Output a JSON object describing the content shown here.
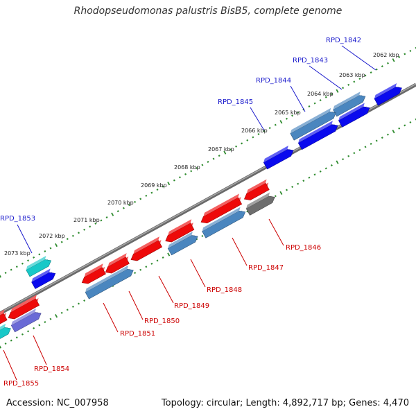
{
  "title": "Rhodopseudomonas palustris BisB5, complete genome",
  "footer": {
    "accession": "Accession: NC_007958",
    "info": "Topology: circular; Length: 4,892,717 bp; Genes: 4,470"
  },
  "colors": {
    "backbone": "#808080",
    "tick": "#2e8b2e",
    "label_top": "#1a1acc",
    "label_bottom": "#cc0000",
    "gene_blue": "#0a0aee",
    "gene_red": "#ee0a0a",
    "gene_steel": "#4a86bf",
    "gene_cyan": "#18c8c8",
    "gene_gray": "#6e6e6e",
    "gene_violet": "#6a6ad6"
  },
  "kbp_ticks": [
    "2062 kbp",
    "2063 kbp",
    "2064 kbp",
    "2065 kbp",
    "2066 kbp",
    "2067 kbp",
    "2068 kbp",
    "2069 kbp",
    "2070 kbp",
    "2071 kbp",
    "2072 kbp",
    "2073 kbp"
  ],
  "genes_top": [
    {
      "label": "RPD_1842",
      "color": "gene_blue"
    },
    {
      "label": "RPD_1843",
      "color": "gene_blue"
    },
    {
      "label": "RPD_1844",
      "color": "gene_steel"
    },
    {
      "label": "RPD_1845",
      "color": "gene_blue"
    },
    {
      "label": "RPD_1853",
      "color": "gene_cyan"
    }
  ],
  "genes_bottom": [
    {
      "label": "RPD_1846",
      "color": "gene_gray"
    },
    {
      "label": "RPD_1847",
      "color": "gene_steel"
    },
    {
      "label": "RPD_1848",
      "color": "gene_steel"
    },
    {
      "label": "RPD_1849",
      "color": "gene_red"
    },
    {
      "label": "RPD_1850",
      "color": "gene_red"
    },
    {
      "label": "RPD_1851",
      "color": "gene_steel"
    },
    {
      "label": "RPD_1854",
      "color": "gene_violet"
    },
    {
      "label": "RPD_1855",
      "color": "gene_cyan"
    }
  ]
}
